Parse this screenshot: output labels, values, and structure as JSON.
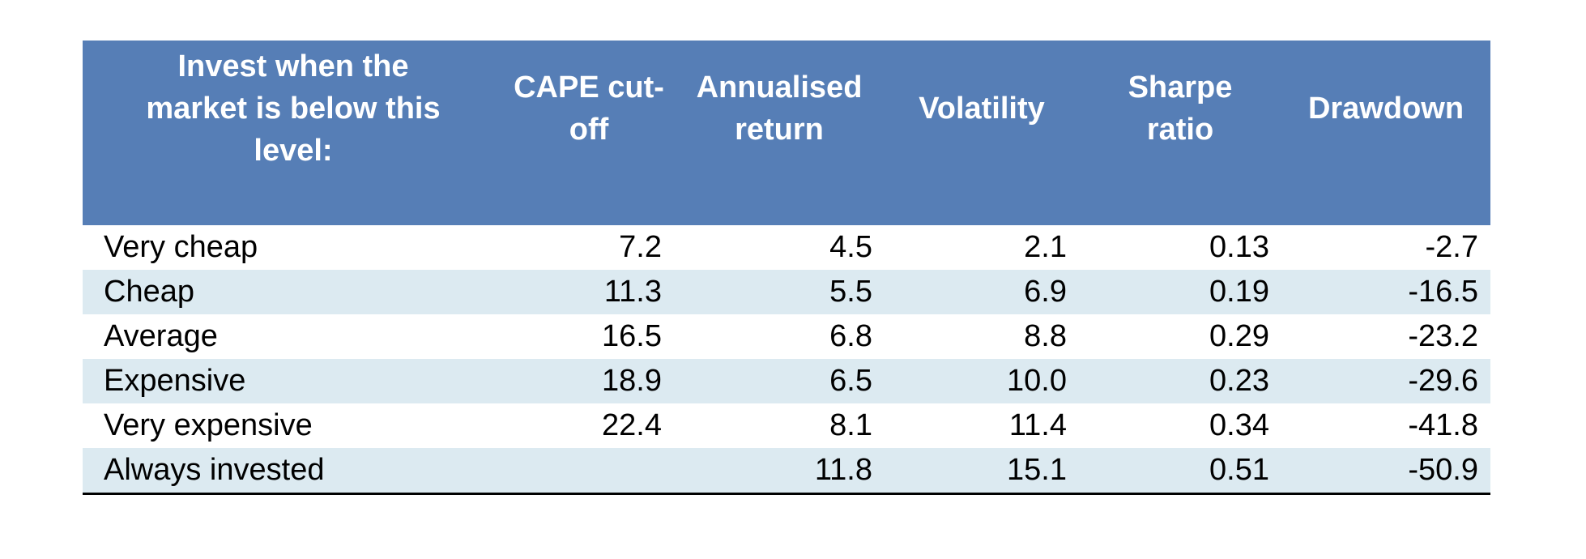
{
  "theme": {
    "header_bg": "#567eb6",
    "header_text": "#ffffff",
    "stripe_bg": "#dceaf1",
    "row_bg": "#ffffff",
    "body_text": "#000000",
    "bottom_border": "#000000",
    "page_bg": "#ffffff"
  },
  "table": {
    "header": {
      "columns": [
        {
          "label": "Invest when the market is below this level:",
          "lines": [
            "Invest when the",
            "market is below this",
            "level:"
          ]
        },
        {
          "label": "CAPE cut-off",
          "lines": [
            "CAPE cut-",
            "off"
          ]
        },
        {
          "label": "Annualised return",
          "lines": [
            "Annualised",
            "return"
          ]
        },
        {
          "label": "Volatility",
          "lines": [
            "Volatility"
          ]
        },
        {
          "label": "Sharpe ratio",
          "lines": [
            "Sharpe",
            "ratio"
          ]
        },
        {
          "label": "Drawdown",
          "lines": [
            "Drawdown"
          ]
        }
      ]
    },
    "rows": [
      {
        "label": "Very cheap",
        "cape_cutoff": "7.2",
        "annualised_return": "4.5",
        "volatility": "2.1",
        "sharpe_ratio": "0.13",
        "drawdown": "-2.7"
      },
      {
        "label": "Cheap",
        "cape_cutoff": "11.3",
        "annualised_return": "5.5",
        "volatility": "6.9",
        "sharpe_ratio": "0.19",
        "drawdown": "-16.5"
      },
      {
        "label": "Average",
        "cape_cutoff": "16.5",
        "annualised_return": "6.8",
        "volatility": "8.8",
        "sharpe_ratio": "0.29",
        "drawdown": "-23.2"
      },
      {
        "label": "Expensive",
        "cape_cutoff": "18.9",
        "annualised_return": "6.5",
        "volatility": "10.0",
        "sharpe_ratio": "0.23",
        "drawdown": "-29.6"
      },
      {
        "label": "Very expensive",
        "cape_cutoff": "22.4",
        "annualised_return": "8.1",
        "volatility": "11.4",
        "sharpe_ratio": "0.34",
        "drawdown": "-41.8"
      },
      {
        "label": "Always invested",
        "cape_cutoff": "",
        "annualised_return": "11.8",
        "volatility": "15.1",
        "sharpe_ratio": "0.51",
        "drawdown": "-50.9"
      }
    ]
  },
  "chart_data": {
    "type": "table",
    "title": "",
    "columns": [
      "Invest when the market is below this level:",
      "CAPE cut-off",
      "Annualised return",
      "Volatility",
      "Sharpe ratio",
      "Drawdown"
    ],
    "rows": [
      [
        "Very cheap",
        7.2,
        4.5,
        2.1,
        0.13,
        -2.7
      ],
      [
        "Cheap",
        11.3,
        5.5,
        6.9,
        0.19,
        -16.5
      ],
      [
        "Average",
        16.5,
        6.8,
        8.8,
        0.29,
        -23.2
      ],
      [
        "Expensive",
        18.9,
        6.5,
        10.0,
        0.23,
        -29.6
      ],
      [
        "Very expensive",
        22.4,
        8.1,
        11.4,
        0.34,
        -41.8
      ],
      [
        "Always invested",
        null,
        11.8,
        15.1,
        0.51,
        -50.9
      ]
    ],
    "layout_hints": {
      "header_fill": "#567eb6",
      "zebra_stripe_fill": "#dceaf1",
      "first_column_align": "left",
      "numeric_columns_align": "right",
      "bottom_rule": true
    }
  }
}
